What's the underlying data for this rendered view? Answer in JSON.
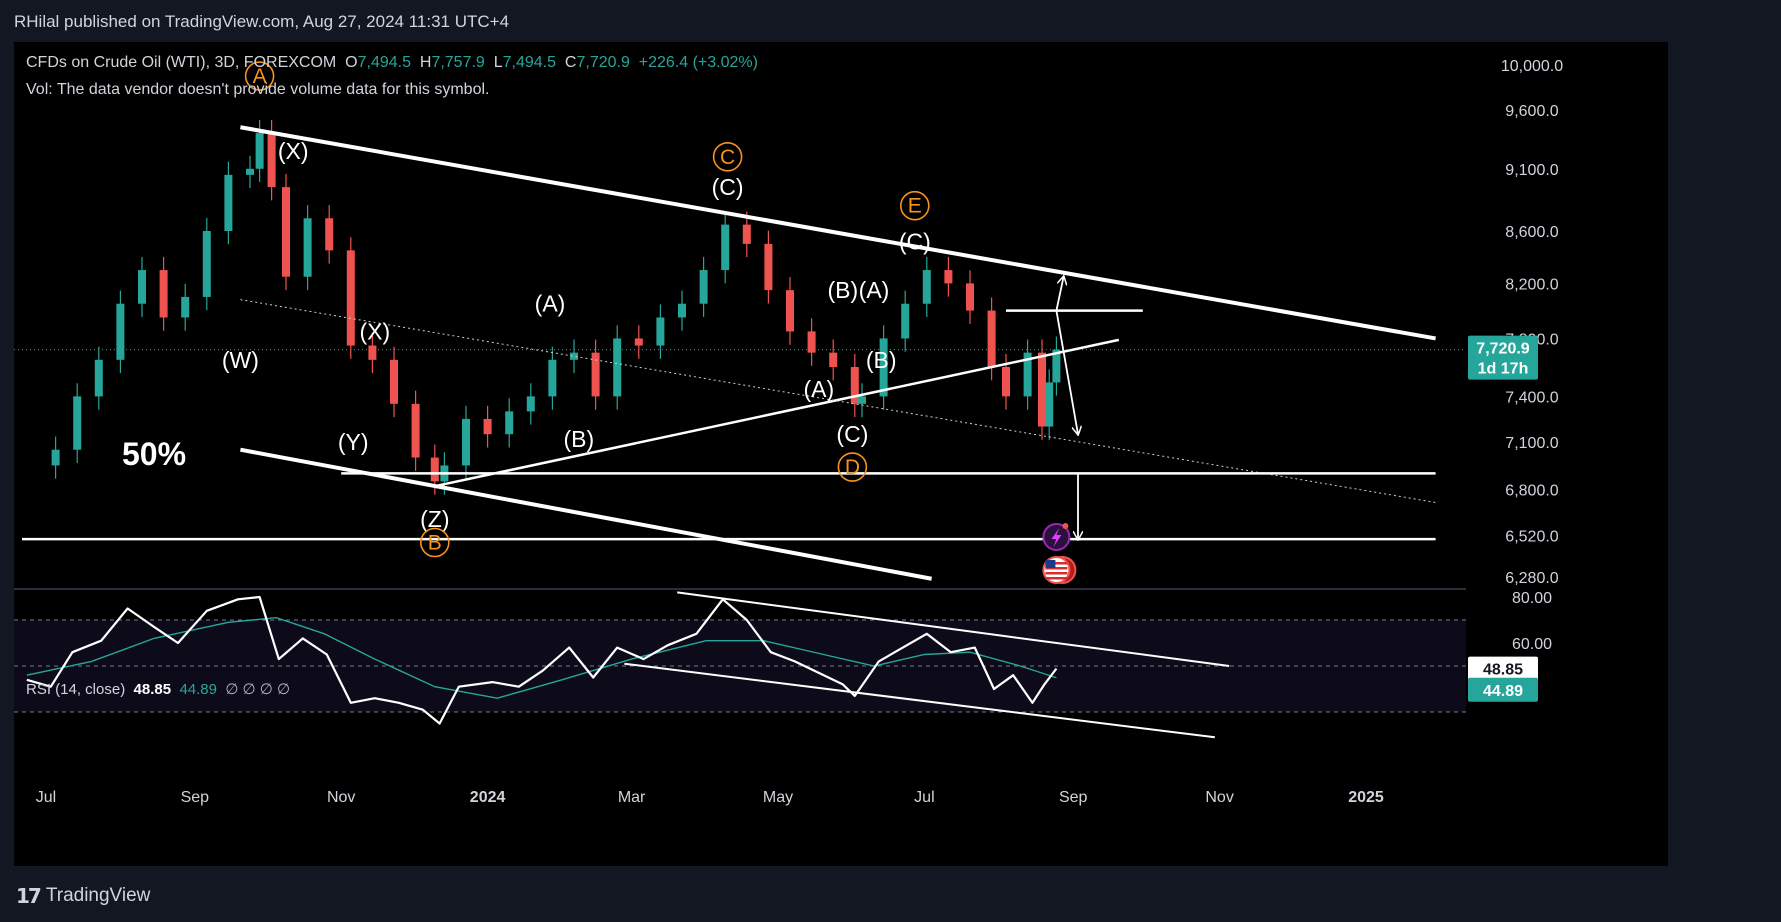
{
  "header": {
    "publisher_line": "RHilal published on TradingView.com, Aug 27, 2024 11:31 UTC+4"
  },
  "legend": {
    "symbol": "CFDs on Crude Oil (WTI), 3D, FOREXCOM",
    "open_label": "O",
    "open": "7,494.5",
    "high_label": "H",
    "high": "7,757.9",
    "low_label": "L",
    "low": "7,494.5",
    "close_label": "C",
    "close": "7,720.9",
    "change": "+226.4 (+3.02%)",
    "vol_note": "Vol: The data vendor doesn't provide volume data for this symbol."
  },
  "rsi_legend": {
    "title": "RSI (14, close)",
    "value": "48.85",
    "ma_value": "44.89",
    "placeholders": "∅  ∅  ∅  ∅"
  },
  "price_badge": {
    "price": "7,720.9",
    "countdown": "1d 17h"
  },
  "rsi_badges": {
    "rsi": "48.85",
    "ma": "44.89"
  },
  "watermark_text": "50%",
  "footer": {
    "logo_mark": "17",
    "logo_text": "TradingView"
  },
  "colors": {
    "up": "#26a69a",
    "down": "#ef5350",
    "wave_orange": "#f7931a",
    "background": "#000000",
    "rsi_line": "#ffffff",
    "rsi_ma": "#26a69a"
  },
  "icons": [
    "lightning-event-icon",
    "us-flag-event-icon"
  ],
  "chart_data": [
    {
      "type": "candlestick",
      "title": "CFDs on Crude Oil (WTI), 3D, FOREXCOM",
      "y_scale": "log",
      "y_ticks": [
        10000,
        9600,
        9100,
        8600,
        8200,
        7800,
        7400,
        7100,
        6800,
        6520,
        6280
      ],
      "y_tick_labels": [
        "10,000.0",
        "9,600.0",
        "9,100.0",
        "8,600.0",
        "8,200.0",
        "7,800.0",
        "7,400.0",
        "7,100.0",
        "6,800.0",
        "6,520.0",
        "6,280.0"
      ],
      "x_tick_labels": [
        "Jul",
        "Sep",
        "Nov",
        "2024",
        "Mar",
        "May",
        "Jul",
        "Sep",
        "Nov",
        "2025"
      ],
      "x_tick_dates": [
        "2023-07-01",
        "2023-09-01",
        "2023-11-01",
        "2024-01-01",
        "2024-03-01",
        "2024-05-01",
        "2024-07-01",
        "2024-09-01",
        "2024-11-01",
        "2025-01-01"
      ],
      "close_series": [
        [
          "2023-06-23",
          6950
        ],
        [
          "2023-07-05",
          7050
        ],
        [
          "2023-07-14",
          7400
        ],
        [
          "2023-07-23",
          7650
        ],
        [
          "2023-08-01",
          8050
        ],
        [
          "2023-08-10",
          8300
        ],
        [
          "2023-08-19",
          7950
        ],
        [
          "2023-08-28",
          8100
        ],
        [
          "2023-09-06",
          8600
        ],
        [
          "2023-09-15",
          9050
        ],
        [
          "2023-09-24",
          9100
        ],
        [
          "2023-09-28",
          9400
        ],
        [
          "2023-10-03",
          8950
        ],
        [
          "2023-10-09",
          8250
        ],
        [
          "2023-10-18",
          8700
        ],
        [
          "2023-10-27",
          8450
        ],
        [
          "2023-11-05",
          7750
        ],
        [
          "2023-11-14",
          7650
        ],
        [
          "2023-11-23",
          7350
        ],
        [
          "2023-12-02",
          7000
        ],
        [
          "2023-12-10",
          6850
        ],
        [
          "2023-12-14",
          6950
        ],
        [
          "2023-12-23",
          7250
        ],
        [
          "2024-01-01",
          7150
        ],
        [
          "2024-01-10",
          7300
        ],
        [
          "2024-01-19",
          7400
        ],
        [
          "2024-01-28",
          7650
        ],
        [
          "2024-02-06",
          7700
        ],
        [
          "2024-02-15",
          7400
        ],
        [
          "2024-02-24",
          7800
        ],
        [
          "2024-03-04",
          7750
        ],
        [
          "2024-03-13",
          7950
        ],
        [
          "2024-03-22",
          8050
        ],
        [
          "2024-03-31",
          8300
        ],
        [
          "2024-04-09",
          8650
        ],
        [
          "2024-04-18",
          8500
        ],
        [
          "2024-04-27",
          8150
        ],
        [
          "2024-05-06",
          7850
        ],
        [
          "2024-05-15",
          7700
        ],
        [
          "2024-05-24",
          7600
        ],
        [
          "2024-06-02",
          7350
        ],
        [
          "2024-06-05",
          7400
        ],
        [
          "2024-06-14",
          7800
        ],
        [
          "2024-06-23",
          8050
        ],
        [
          "2024-07-02",
          8300
        ],
        [
          "2024-07-11",
          8200
        ],
        [
          "2024-07-20",
          8000
        ],
        [
          "2024-07-29",
          7600
        ],
        [
          "2024-08-04",
          7400
        ],
        [
          "2024-08-13",
          7700
        ],
        [
          "2024-08-19",
          7200
        ],
        [
          "2024-08-22",
          7494.5
        ],
        [
          "2024-08-25",
          7720.9
        ]
      ],
      "last_candle": {
        "open": 7494.5,
        "high": 7757.9,
        "low": 7494.5,
        "close": 7720.9,
        "change": 226.4,
        "change_pct": 3.02
      },
      "wave_labels": [
        {
          "text": "A",
          "style": "circled",
          "date": "2023-09-28",
          "price": 9900
        },
        {
          "text": "(X)",
          "date": "2023-10-12",
          "price": 9250
        },
        {
          "text": "(W)",
          "date": "2023-09-20",
          "price": 7650
        },
        {
          "text": "(X)",
          "date": "2023-11-15",
          "price": 7850
        },
        {
          "text": "(Y)",
          "date": "2023-11-06",
          "price": 7100
        },
        {
          "text": "(Z)",
          "date": "2023-12-10",
          "price": 6620
        },
        {
          "text": "B",
          "style": "circled",
          "date": "2023-12-10",
          "price": 6480
        },
        {
          "text": "(A)",
          "date": "2024-01-27",
          "price": 8050
        },
        {
          "text": "(B)",
          "date": "2024-02-08",
          "price": 7120
        },
        {
          "text": "C",
          "style": "circled",
          "date": "2024-04-10",
          "price": 9200
        },
        {
          "text": "(C)",
          "date": "2024-04-10",
          "price": 8950
        },
        {
          "text": "(A)",
          "date": "2024-05-18",
          "price": 7450
        },
        {
          "text": "(B)",
          "date": "2024-05-28",
          "price": 8150
        },
        {
          "text": "(A)",
          "date": "2024-06-10",
          "price": 8150
        },
        {
          "text": "(B)",
          "date": "2024-06-13",
          "price": 7650
        },
        {
          "text": "(C)",
          "date": "2024-06-01",
          "price": 7150
        },
        {
          "text": "D",
          "style": "circled",
          "date": "2024-06-01",
          "price": 6940
        },
        {
          "text": "E",
          "style": "circled",
          "date": "2024-06-27",
          "price": 8800
        },
        {
          "text": "(C)",
          "date": "2024-06-27",
          "price": 8520
        }
      ],
      "trendlines": [
        {
          "kind": "channel-upper",
          "from": [
            "2023-09-20",
            9450
          ],
          "to": [
            "2025-01-30",
            7800
          ]
        },
        {
          "kind": "channel-lower",
          "from": [
            "2023-09-20",
            7050
          ],
          "to": [
            "2024-07-04",
            6270
          ]
        },
        {
          "kind": "triangle-base",
          "from": [
            "2023-12-10",
            6820
          ],
          "to": [
            "2024-09-20",
            7790
          ]
        },
        {
          "kind": "dotted-midline",
          "from": [
            "2023-09-20",
            8080
          ],
          "to": [
            "2025-01-30",
            6720
          ]
        },
        {
          "kind": "support",
          "from": [
            "2023-11-01",
            6900
          ],
          "to": [
            "2025-01-30",
            6900
          ]
        },
        {
          "kind": "support",
          "from": [
            "2023-06-21",
            6500
          ],
          "to": [
            "2025-01-30",
            6500
          ]
        },
        {
          "kind": "resistance",
          "from": [
            "2024-08-04",
            8000
          ],
          "to": [
            "2024-09-30",
            8000
          ]
        }
      ],
      "projections": [
        {
          "from": [
            "2024-08-25",
            8000
          ],
          "to": [
            "2024-08-28",
            8250
          ]
        },
        {
          "from": [
            "2024-08-25",
            8000
          ],
          "to": [
            "2024-09-03",
            7150
          ]
        },
        {
          "from": [
            "2024-09-03",
            6900
          ],
          "to": [
            "2024-09-03",
            6500
          ]
        }
      ]
    },
    {
      "type": "line",
      "title": "RSI (14, close)",
      "ylim": [
        20,
        80
      ],
      "y_ticks": [
        80,
        60
      ],
      "y_tick_labels": [
        "80.00",
        "60.00"
      ],
      "bands": [
        70,
        50,
        30
      ],
      "series": [
        {
          "name": "RSI",
          "points": [
            [
              "2023-06-23",
              44
            ],
            [
              "2023-07-03",
              41
            ],
            [
              "2023-07-12",
              56
            ],
            [
              "2023-07-24",
              61
            ],
            [
              "2023-08-04",
              75
            ],
            [
              "2023-08-15",
              67
            ],
            [
              "2023-08-25",
              60
            ],
            [
              "2023-09-06",
              74
            ],
            [
              "2023-09-19",
              79
            ],
            [
              "2023-09-28",
              80
            ],
            [
              "2023-10-06",
              53
            ],
            [
              "2023-10-16",
              62
            ],
            [
              "2023-10-26",
              55
            ],
            [
              "2023-11-05",
              34
            ],
            [
              "2023-11-15",
              36
            ],
            [
              "2023-11-25",
              34
            ],
            [
              "2023-12-05",
              31
            ],
            [
              "2023-12-12",
              25
            ],
            [
              "2023-12-20",
              41
            ],
            [
              "2024-01-03",
              43
            ],
            [
              "2024-01-14",
              41
            ],
            [
              "2024-01-24",
              48
            ],
            [
              "2024-02-04",
              58
            ],
            [
              "2024-02-14",
              45
            ],
            [
              "2024-02-24",
              58
            ],
            [
              "2024-03-06",
              53
            ],
            [
              "2024-03-16",
              59
            ],
            [
              "2024-03-28",
              64
            ],
            [
              "2024-04-08",
              79
            ],
            [
              "2024-04-18",
              70
            ],
            [
              "2024-04-28",
              56
            ],
            [
              "2024-05-08",
              52
            ],
            [
              "2024-05-18",
              47
            ],
            [
              "2024-05-28",
              42
            ],
            [
              "2024-06-02",
              37
            ],
            [
              "2024-06-12",
              52
            ],
            [
              "2024-06-22",
              58
            ],
            [
              "2024-07-02",
              64
            ],
            [
              "2024-07-12",
              56
            ],
            [
              "2024-07-22",
              58
            ],
            [
              "2024-07-30",
              40
            ],
            [
              "2024-08-07",
              46
            ],
            [
              "2024-08-15",
              34
            ],
            [
              "2024-08-20",
              42
            ],
            [
              "2024-08-25",
              48.85
            ]
          ]
        },
        {
          "name": "RSI-based MA",
          "points": [
            [
              "2023-06-23",
              46
            ],
            [
              "2023-07-20",
              52
            ],
            [
              "2023-08-15",
              62
            ],
            [
              "2023-09-15",
              69
            ],
            [
              "2023-10-05",
              71
            ],
            [
              "2023-10-25",
              64
            ],
            [
              "2023-11-15",
              53
            ],
            [
              "2023-12-10",
              41
            ],
            [
              "2024-01-05",
              36
            ],
            [
              "2024-02-01",
              44
            ],
            [
              "2024-03-01",
              53
            ],
            [
              "2024-04-01",
              61
            ],
            [
              "2024-04-25",
              61
            ],
            [
              "2024-05-20",
              55
            ],
            [
              "2024-06-10",
              50
            ],
            [
              "2024-07-01",
              55
            ],
            [
              "2024-07-20",
              56
            ],
            [
              "2024-08-10",
              50
            ],
            [
              "2024-08-25",
              44.89
            ]
          ]
        }
      ],
      "trendlines": [
        {
          "from": [
            "2024-03-20",
            82
          ],
          "to": [
            "2024-11-05",
            50
          ]
        },
        {
          "from": [
            "2024-02-27",
            51
          ],
          "to": [
            "2024-10-30",
            19
          ]
        }
      ]
    }
  ]
}
